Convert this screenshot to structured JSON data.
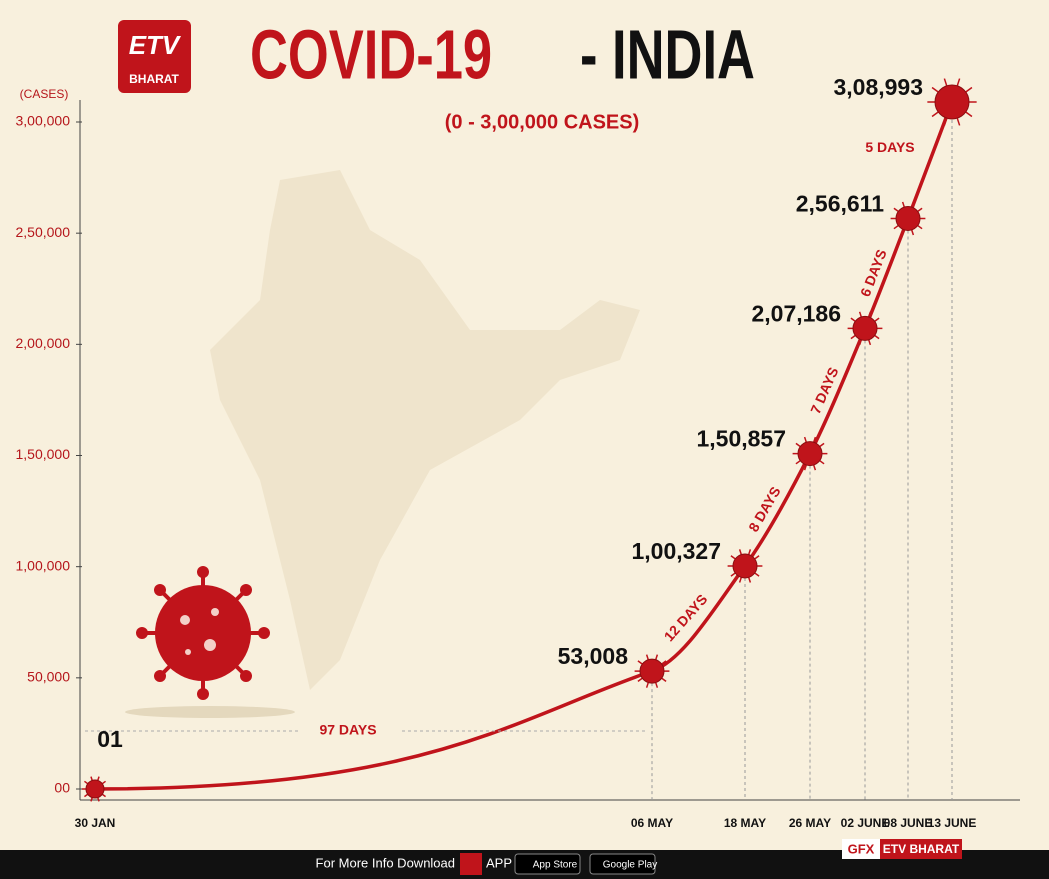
{
  "logo": "BHARAT",
  "chart_data": {
    "type": "line",
    "title": "COVID-19",
    "title_suffix": "- INDIA",
    "subtitle": "(0 - 3,00,000 CASES)",
    "y_label": "(CASES)",
    "categories": [
      "30 JAN",
      "06 MAY",
      "18 MAY",
      "26 MAY",
      "02 JUNE",
      "08 JUNE",
      "13 JUNE"
    ],
    "series": [
      {
        "name": "Cases",
        "color": "#c0141b",
        "values": [
          1,
          53008,
          100327,
          150857,
          207186,
          256611,
          308993
        ],
        "value_labels": [
          "01",
          "53,008",
          "1,00,327",
          "1,50,857",
          "2,07,186",
          "2,56,611",
          "3,08,993"
        ]
      }
    ],
    "intervals": [
      "97 DAYS",
      "12 DAYS",
      "8 DAYS",
      "7 DAYS",
      "6 DAYS",
      "5 DAYS"
    ],
    "ylim": [
      0,
      300000
    ],
    "yticks": [
      {
        "value": 0,
        "label": "00"
      },
      {
        "value": 50000,
        "label": "50,000"
      },
      {
        "value": 100000,
        "label": "1,00,000"
      },
      {
        "value": 150000,
        "label": "1,50,000"
      },
      {
        "value": 200000,
        "label": "2,00,000"
      },
      {
        "value": 250000,
        "label": "2,50,000"
      },
      {
        "value": 300000,
        "label": "3,00,000"
      }
    ]
  },
  "footer": {
    "text": "For More Info Download",
    "app": "APP",
    "app_store": "App Store",
    "google_play": "Google Play",
    "gfx": "GFX",
    "brand": "ETV BHARAT"
  }
}
